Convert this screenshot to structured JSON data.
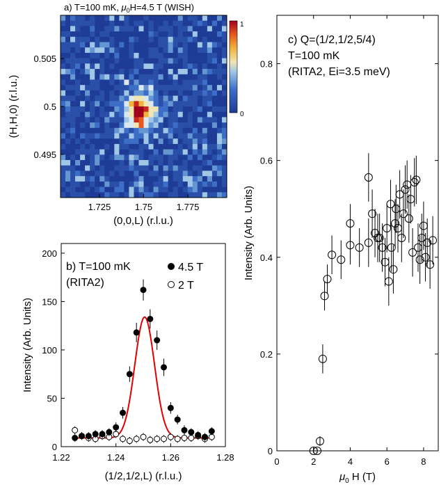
{
  "chart_data": [
    {
      "type": "heatmap",
      "title": "a) T=100 mK, μ0H=4.5 T (WISH)",
      "title_parts": {
        "pre": "a) T=100 mK, ",
        "mu": "μ",
        "sub": "0",
        "post": "H=4.5 T (WISH)"
      },
      "xlabel": "(0,0,L) (r.l.u.)",
      "ylabel": "(H,H,0) (r.l.u.)",
      "xlim": [
        1.703,
        1.797
      ],
      "ylim": [
        0.4905,
        0.5095
      ],
      "xticks": [
        "1.725",
        "1.75",
        "1.775"
      ],
      "xtick_values": [
        1.725,
        1.75,
        1.775
      ],
      "yticks": [
        "0.495",
        "0.5",
        "0.505"
      ],
      "ytick_values": [
        0.495,
        0.5,
        0.505
      ],
      "colorbar": {
        "min": 0,
        "max": 1,
        "min_label": "0",
        "max_label": "1"
      },
      "grid": [
        34,
        34
      ],
      "peak": {
        "x": 1.748,
        "y": 0.4995,
        "intensity": 1.0
      }
    },
    {
      "type": "scatter",
      "title": "b) T=100 mK",
      "subtitle": "(RITA2)",
      "xlabel": "(1/2,1/2,L) (r.l.u.)",
      "ylabel": "Intensity (Arb. Units)",
      "xlim": [
        1.22,
        1.28
      ],
      "ylim": [
        0,
        210
      ],
      "xticks": [
        "1.22",
        "1.24",
        "1.26",
        "1.28"
      ],
      "xtick_values": [
        1.22,
        1.24,
        1.26,
        1.28
      ],
      "yticks": [
        "0",
        "50",
        "100",
        "150",
        "200"
      ],
      "ytick_values": [
        0,
        50,
        100,
        150,
        200
      ],
      "legend_position": "top-right",
      "series": [
        {
          "name": "4.5 T",
          "marker": "filled-circle",
          "x": [
            1.225,
            1.2275,
            1.23,
            1.2325,
            1.235,
            1.2375,
            1.24,
            1.2425,
            1.245,
            1.2475,
            1.25,
            1.2525,
            1.255,
            1.2575,
            1.26,
            1.2625,
            1.265,
            1.2675,
            1.27,
            1.2725,
            1.275
          ],
          "y": [
            9,
            11,
            11,
            13,
            13,
            15,
            20,
            35,
            75,
            118,
            162,
            132,
            110,
            82,
            40,
            28,
            17,
            15,
            12,
            10,
            16
          ],
          "err": [
            4,
            4,
            4,
            4,
            4,
            4,
            5,
            6,
            8,
            10,
            11,
            10,
            10,
            9,
            6,
            5,
            5,
            4,
            4,
            4,
            4
          ]
        },
        {
          "name": "2 T",
          "marker": "open-circle",
          "x": [
            1.225,
            1.2275,
            1.23,
            1.2325,
            1.235,
            1.2375,
            1.24,
            1.2425,
            1.245,
            1.2475,
            1.25,
            1.2525,
            1.255,
            1.2575,
            1.26,
            1.2625,
            1.265,
            1.2675,
            1.27,
            1.2725,
            1.275
          ],
          "y": [
            17,
            11,
            9,
            8,
            11,
            10,
            13,
            8,
            6,
            8,
            10,
            7,
            8,
            8,
            10,
            8,
            9,
            9,
            11,
            8,
            10
          ],
          "err": [
            4,
            4,
            4,
            4,
            4,
            4,
            4,
            4,
            4,
            4,
            4,
            4,
            4,
            4,
            4,
            4,
            4,
            4,
            4,
            4,
            4
          ]
        }
      ],
      "fit": {
        "color": "#e00000",
        "center": 1.2505,
        "amplitude": 125,
        "sigma": 0.0036,
        "background": 9
      }
    },
    {
      "type": "scatter",
      "title": "c) Q=(1/2,1/2,5/4)",
      "annotation_lines": [
        "T=100 mK",
        "(RITA2, Ei=3.5 meV)"
      ],
      "xlabel": "μ0 H (T)",
      "xlabel_parts": {
        "mu": "μ",
        "sub": "0",
        "post": " H (T)"
      },
      "ylabel": "Intensity (Arb. Units)",
      "xlim": [
        0,
        8.8
      ],
      "ylim": [
        0,
        0.9
      ],
      "xticks": [
        "0",
        "2",
        "4",
        "6",
        "8"
      ],
      "xtick_values": [
        0,
        2,
        4,
        6,
        8
      ],
      "yticks": [
        "0",
        "0.2",
        "0.4",
        "0.6",
        "0.8"
      ],
      "ytick_values": [
        0,
        0.2,
        0.4,
        0.6,
        0.8
      ],
      "series": [
        {
          "name": "",
          "marker": "open-circle",
          "x": [
            2.0,
            2.2,
            2.35,
            2.5,
            2.6,
            2.75,
            3.0,
            3.5,
            4.0,
            4.0,
            4.5,
            5.0,
            5.0,
            5.2,
            5.35,
            5.5,
            5.6,
            5.75,
            5.9,
            6.0,
            6.1,
            6.2,
            6.25,
            6.35,
            6.45,
            6.5,
            6.6,
            6.7,
            6.8,
            6.9,
            7.0,
            7.1,
            7.2,
            7.3,
            7.4,
            7.5,
            7.6,
            7.7,
            7.8,
            7.9,
            8.0,
            8.1,
            8.2,
            8.35,
            8.5
          ],
          "y": [
            0.0,
            0.0,
            0.02,
            0.19,
            0.32,
            0.355,
            0.405,
            0.395,
            0.425,
            0.47,
            0.42,
            0.565,
            0.43,
            0.49,
            0.45,
            0.44,
            0.44,
            0.42,
            0.39,
            0.46,
            0.35,
            0.51,
            0.42,
            0.375,
            0.47,
            0.5,
            0.46,
            0.53,
            0.44,
            0.49,
            0.54,
            0.55,
            0.48,
            0.52,
            0.41,
            0.555,
            0.56,
            0.42,
            0.395,
            0.44,
            0.465,
            0.4,
            0.43,
            0.385,
            0.435
          ],
          "err": [
            0.005,
            0.005,
            0.01,
            0.03,
            0.03,
            0.03,
            0.04,
            0.04,
            0.04,
            0.04,
            0.04,
            0.05,
            0.05,
            0.05,
            0.05,
            0.05,
            0.05,
            0.05,
            0.05,
            0.05,
            0.05,
            0.05,
            0.05,
            0.05,
            0.05,
            0.05,
            0.05,
            0.05,
            0.05,
            0.05,
            0.05,
            0.05,
            0.05,
            0.05,
            0.05,
            0.05,
            0.05,
            0.05,
            0.05,
            0.05,
            0.05,
            0.05,
            0.05,
            0.05,
            0.05
          ]
        }
      ]
    }
  ]
}
